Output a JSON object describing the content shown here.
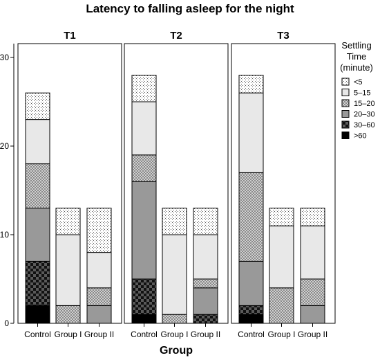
{
  "chart_data": {
    "type": "bar",
    "stacked": true,
    "title": "Latency to falling asleep for the night",
    "xlabel": "Group",
    "ylabel": "",
    "ylim": [
      0,
      30
    ],
    "yticks": [
      0,
      10,
      20,
      30
    ],
    "grid": false,
    "legend_position": "right",
    "legend_title": [
      "Settling",
      "Time",
      "(minute)"
    ],
    "categories": [
      "Control",
      "Group I",
      "Group II"
    ],
    "segment_order": [
      ">60",
      "30–60",
      "20–30",
      "15–20",
      "5–15",
      "<5"
    ],
    "legend_order": [
      "<5",
      "5–15",
      "15–20",
      "20–30",
      "30–60",
      ">60"
    ],
    "segment_fills": {
      "<5": "dots",
      "5–15": "#e8e8e8",
      "15–20": "crosshatch",
      "20–30": "#999999",
      "30–60": "checker",
      ">60": "#000000"
    },
    "panels": [
      {
        "name": "T1",
        "bars": [
          {
            "category": "Control",
            "segments": {
              ">60": 2,
              "30–60": 5,
              "20–30": 6,
              "15–20": 5,
              "5–15": 5,
              "<5": 3
            }
          },
          {
            "category": "Group I",
            "segments": {
              ">60": 0,
              "30–60": 0,
              "20–30": 0,
              "15–20": 2,
              "5–15": 8,
              "<5": 3
            }
          },
          {
            "category": "Group II",
            "segments": {
              ">60": 0,
              "30–60": 0,
              "20–30": 2,
              "15–20": 2,
              "5–15": 4,
              "<5": 5
            }
          }
        ]
      },
      {
        "name": "T2",
        "bars": [
          {
            "category": "Control",
            "segments": {
              ">60": 1,
              "30–60": 4,
              "20–30": 11,
              "15–20": 3,
              "5–15": 6,
              "<5": 3
            }
          },
          {
            "category": "Group I",
            "segments": {
              ">60": 0,
              "30–60": 0,
              "20–30": 0,
              "15–20": 1,
              "5–15": 9,
              "<5": 3
            }
          },
          {
            "category": "Group II",
            "segments": {
              ">60": 0,
              "30–60": 1,
              "20–30": 3,
              "15–20": 1,
              "5–15": 5,
              "<5": 3
            }
          }
        ]
      },
      {
        "name": "T3",
        "bars": [
          {
            "category": "Control",
            "segments": {
              ">60": 1,
              "30–60": 1,
              "20–30": 5,
              "15–20": 10,
              "5–15": 9,
              "<5": 2
            }
          },
          {
            "category": "Group I",
            "segments": {
              ">60": 0,
              "30–60": 0,
              "20–30": 0,
              "15–20": 4,
              "5–15": 7,
              "<5": 2
            }
          },
          {
            "category": "Group II",
            "segments": {
              ">60": 0,
              "30–60": 0,
              "20–30": 2,
              "15–20": 3,
              "5–15": 6,
              "<5": 2
            }
          }
        ]
      }
    ]
  }
}
